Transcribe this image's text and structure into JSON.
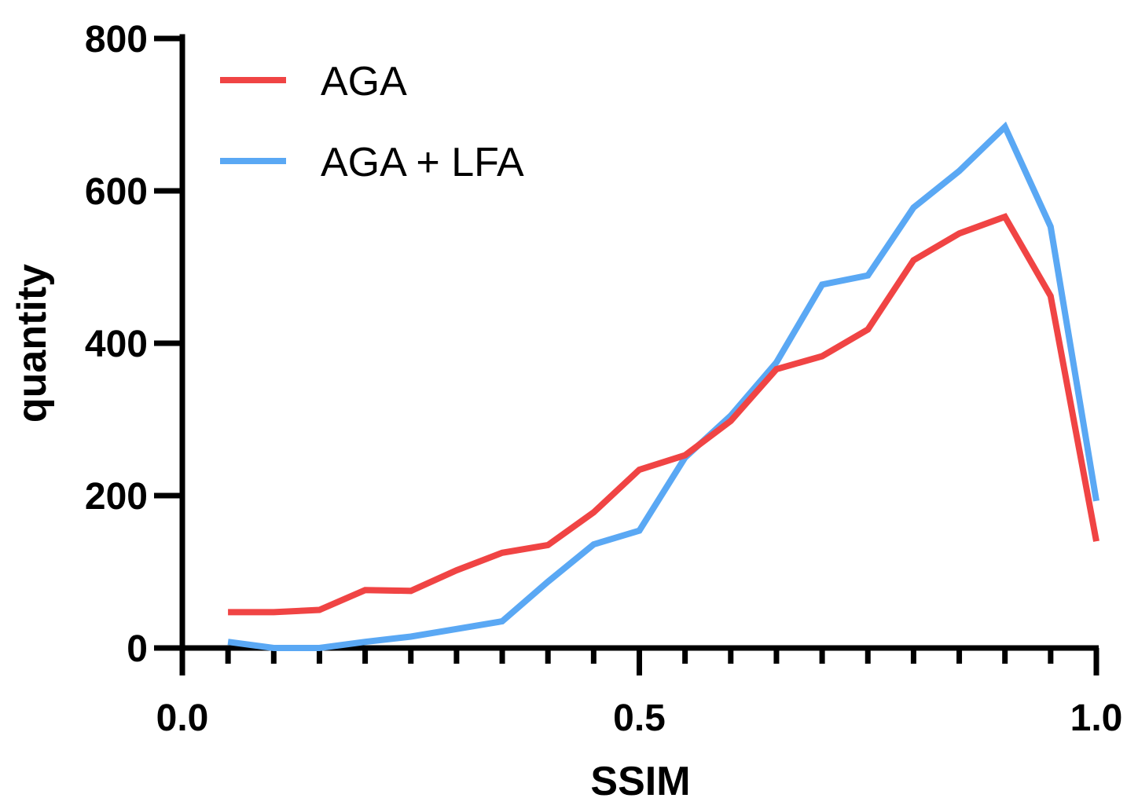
{
  "chart_data": {
    "type": "line",
    "title": "",
    "xlabel": "SSIM",
    "ylabel": "quantity",
    "xlim": [
      0.0,
      1.0
    ],
    "ylim": [
      0,
      800
    ],
    "xticks": [
      0.0,
      0.5,
      1.0
    ],
    "xtick_labels": [
      "0.0",
      "0.5",
      "1.0"
    ],
    "x_minor_ticks": [
      0.05,
      0.1,
      0.15,
      0.2,
      0.25,
      0.3,
      0.35,
      0.4,
      0.45,
      0.55,
      0.6,
      0.65,
      0.7,
      0.75,
      0.8,
      0.85,
      0.9,
      0.95
    ],
    "yticks": [
      0,
      200,
      400,
      600,
      800
    ],
    "ytick_labels": [
      "0",
      "200",
      "400",
      "600",
      "800"
    ],
    "legend_position": "top-left",
    "x": [
      0.05,
      0.1,
      0.15,
      0.2,
      0.25,
      0.3,
      0.35,
      0.4,
      0.45,
      0.5,
      0.55,
      0.6,
      0.65,
      0.7,
      0.75,
      0.8,
      0.85,
      0.9,
      0.95,
      1.0
    ],
    "series": [
      {
        "name": "AGA",
        "color": "#f04444",
        "values": [
          47,
          47,
          50,
          76,
          75,
          102,
          125,
          135,
          178,
          234,
          253,
          298,
          366,
          383,
          418,
          509,
          544,
          566,
          462,
          140
        ]
      },
      {
        "name": "AGA + LFA",
        "color": "#5aa8f4",
        "values": [
          8,
          0,
          0,
          8,
          15,
          25,
          35,
          87,
          136,
          154,
          250,
          305,
          375,
          477,
          489,
          578,
          626,
          684,
          553,
          193
        ]
      }
    ]
  }
}
